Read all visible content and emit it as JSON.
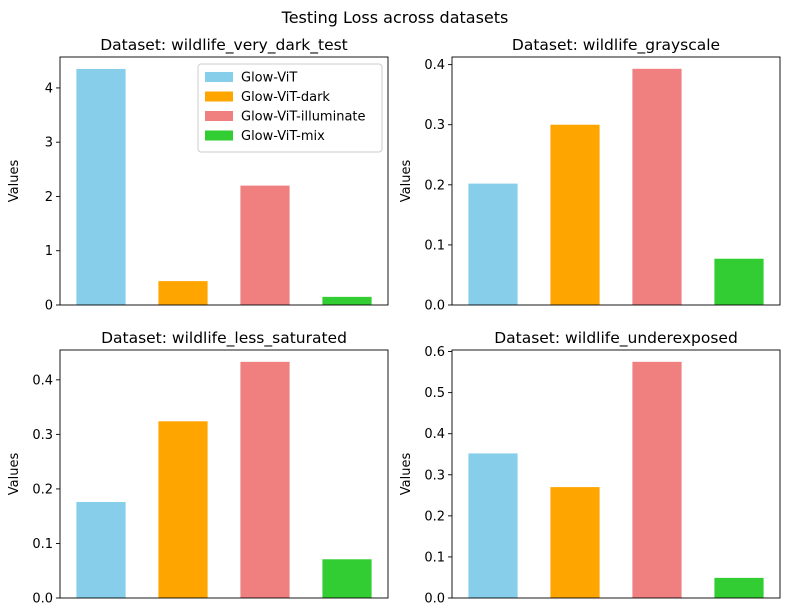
{
  "figure": {
    "title": "Testing Loss across datasets"
  },
  "series_colors": [
    "#87CEEB",
    "#FFA500",
    "#F08080",
    "#32CD32"
  ],
  "chart_data": [
    {
      "type": "bar",
      "title": "Dataset: wildlife_very_dark_test",
      "ylabel": "Values",
      "categories": [
        "Glow-ViT",
        "Glow-ViT-dark",
        "Glow-ViT-illuminate",
        "Glow-ViT-mix"
      ],
      "values": [
        4.35,
        0.44,
        2.2,
        0.15
      ],
      "ylim": [
        0,
        4.57
      ],
      "yticks": [
        0,
        1,
        2,
        3,
        4
      ],
      "ytick_labels": [
        "0",
        "1",
        "2",
        "3",
        "4"
      ],
      "legend": {
        "placement": "upper-right",
        "entries": [
          "Glow-ViT",
          "Glow-ViT-dark",
          "Glow-ViT-illuminate",
          "Glow-ViT-mix"
        ]
      }
    },
    {
      "type": "bar",
      "title": "Dataset: wildlife_grayscale",
      "ylabel": "Values",
      "categories": [
        "Glow-ViT",
        "Glow-ViT-dark",
        "Glow-ViT-illuminate",
        "Glow-ViT-mix"
      ],
      "values": [
        0.202,
        0.3,
        0.393,
        0.077
      ],
      "ylim": [
        0,
        0.4127
      ],
      "yticks": [
        0,
        0.1,
        0.2,
        0.3,
        0.4
      ],
      "ytick_labels": [
        "0.0",
        "0.1",
        "0.2",
        "0.3",
        "0.4"
      ]
    },
    {
      "type": "bar",
      "title": "Dataset: wildlife_less_saturated",
      "ylabel": "Values",
      "categories": [
        "Glow-ViT",
        "Glow-ViT-dark",
        "Glow-ViT-illuminate",
        "Glow-ViT-mix"
      ],
      "values": [
        0.176,
        0.324,
        0.433,
        0.071
      ],
      "ylim": [
        0,
        0.4547
      ],
      "yticks": [
        0,
        0.1,
        0.2,
        0.3,
        0.4
      ],
      "ytick_labels": [
        "0.0",
        "0.1",
        "0.2",
        "0.3",
        "0.4"
      ]
    },
    {
      "type": "bar",
      "title": "Dataset: wildlife_underexposed",
      "ylabel": "Values",
      "categories": [
        "Glow-ViT",
        "Glow-ViT-dark",
        "Glow-ViT-illuminate",
        "Glow-ViT-mix"
      ],
      "values": [
        0.352,
        0.27,
        0.575,
        0.049
      ],
      "ylim": [
        0,
        0.6038
      ],
      "yticks": [
        0,
        0.1,
        0.2,
        0.3,
        0.4,
        0.5,
        0.6
      ],
      "ytick_labels": [
        "0.0",
        "0.1",
        "0.2",
        "0.3",
        "0.4",
        "0.5",
        "0.6"
      ]
    }
  ]
}
